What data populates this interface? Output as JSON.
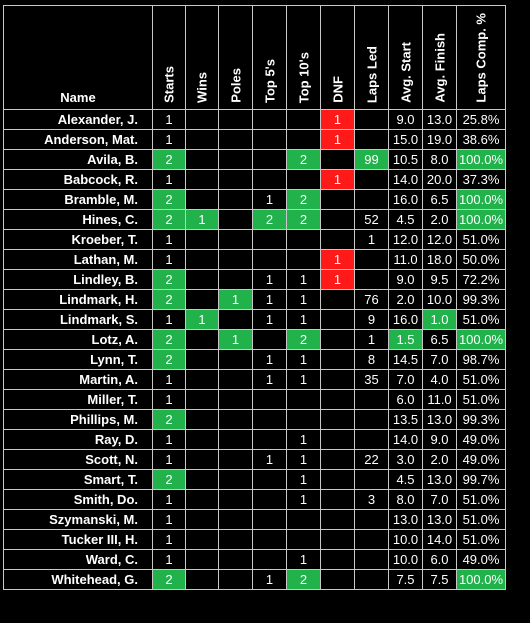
{
  "colors": {
    "green": "#22b24c",
    "red": "#ff1a1a",
    "bg": "#000000"
  },
  "headers": [
    "Name",
    "Starts",
    "Wins",
    "Poles",
    "Top 5's",
    "Top 10's",
    "DNF",
    "Laps Led",
    "Avg. Start",
    "Avg. Finish",
    "Laps Comp. %"
  ],
  "rows": [
    {
      "name": "Alexander, J.",
      "cells": [
        {
          "v": "1"
        },
        {
          "v": ""
        },
        {
          "v": ""
        },
        {
          "v": ""
        },
        {
          "v": ""
        },
        {
          "v": "1",
          "c": "r"
        },
        {
          "v": ""
        },
        {
          "v": "9.0"
        },
        {
          "v": "13.0"
        },
        {
          "v": "25.8%"
        }
      ]
    },
    {
      "name": "Anderson, Mat.",
      "cells": [
        {
          "v": "1"
        },
        {
          "v": ""
        },
        {
          "v": ""
        },
        {
          "v": ""
        },
        {
          "v": ""
        },
        {
          "v": "1",
          "c": "r"
        },
        {
          "v": ""
        },
        {
          "v": "15.0"
        },
        {
          "v": "19.0"
        },
        {
          "v": "38.6%"
        }
      ]
    },
    {
      "name": "Avila, B.",
      "cells": [
        {
          "v": "2",
          "c": "g"
        },
        {
          "v": ""
        },
        {
          "v": ""
        },
        {
          "v": ""
        },
        {
          "v": "2",
          "c": "g"
        },
        {
          "v": ""
        },
        {
          "v": "99",
          "c": "g"
        },
        {
          "v": "10.5"
        },
        {
          "v": "8.0"
        },
        {
          "v": "100.0%",
          "c": "g"
        }
      ]
    },
    {
      "name": "Babcock, R.",
      "cells": [
        {
          "v": "1"
        },
        {
          "v": ""
        },
        {
          "v": ""
        },
        {
          "v": ""
        },
        {
          "v": ""
        },
        {
          "v": "1",
          "c": "r"
        },
        {
          "v": ""
        },
        {
          "v": "14.0"
        },
        {
          "v": "20.0"
        },
        {
          "v": "37.3%"
        }
      ]
    },
    {
      "name": "Bramble, M.",
      "cells": [
        {
          "v": "2",
          "c": "g"
        },
        {
          "v": ""
        },
        {
          "v": ""
        },
        {
          "v": "1"
        },
        {
          "v": "2",
          "c": "g"
        },
        {
          "v": ""
        },
        {
          "v": ""
        },
        {
          "v": "16.0"
        },
        {
          "v": "6.5"
        },
        {
          "v": "100.0%",
          "c": "g"
        }
      ]
    },
    {
      "name": "Hines, C.",
      "cells": [
        {
          "v": "2",
          "c": "g"
        },
        {
          "v": "1",
          "c": "g"
        },
        {
          "v": ""
        },
        {
          "v": "2",
          "c": "g"
        },
        {
          "v": "2",
          "c": "g"
        },
        {
          "v": ""
        },
        {
          "v": "52"
        },
        {
          "v": "4.5"
        },
        {
          "v": "2.0"
        },
        {
          "v": "100.0%",
          "c": "g"
        }
      ]
    },
    {
      "name": "Kroeber, T.",
      "cells": [
        {
          "v": "1"
        },
        {
          "v": ""
        },
        {
          "v": ""
        },
        {
          "v": ""
        },
        {
          "v": ""
        },
        {
          "v": ""
        },
        {
          "v": "1"
        },
        {
          "v": "12.0"
        },
        {
          "v": "12.0"
        },
        {
          "v": "51.0%"
        }
      ]
    },
    {
      "name": "Lathan, M.",
      "cells": [
        {
          "v": "1"
        },
        {
          "v": ""
        },
        {
          "v": ""
        },
        {
          "v": ""
        },
        {
          "v": ""
        },
        {
          "v": "1",
          "c": "r"
        },
        {
          "v": ""
        },
        {
          "v": "11.0"
        },
        {
          "v": "18.0"
        },
        {
          "v": "50.0%"
        }
      ]
    },
    {
      "name": "Lindley, B.",
      "cells": [
        {
          "v": "2",
          "c": "g"
        },
        {
          "v": ""
        },
        {
          "v": ""
        },
        {
          "v": "1"
        },
        {
          "v": "1"
        },
        {
          "v": "1",
          "c": "r"
        },
        {
          "v": ""
        },
        {
          "v": "9.0"
        },
        {
          "v": "9.5"
        },
        {
          "v": "72.2%"
        }
      ]
    },
    {
      "name": "Lindmark, H.",
      "cells": [
        {
          "v": "2",
          "c": "g"
        },
        {
          "v": ""
        },
        {
          "v": "1",
          "c": "g"
        },
        {
          "v": "1"
        },
        {
          "v": "1"
        },
        {
          "v": ""
        },
        {
          "v": "76"
        },
        {
          "v": "2.0"
        },
        {
          "v": "10.0"
        },
        {
          "v": "99.3%"
        }
      ]
    },
    {
      "name": "Lindmark, S.",
      "cells": [
        {
          "v": "1"
        },
        {
          "v": "1",
          "c": "g"
        },
        {
          "v": ""
        },
        {
          "v": "1"
        },
        {
          "v": "1"
        },
        {
          "v": ""
        },
        {
          "v": "9"
        },
        {
          "v": "16.0"
        },
        {
          "v": "1.0",
          "c": "g"
        },
        {
          "v": "51.0%"
        }
      ]
    },
    {
      "name": "Lotz, A.",
      "cells": [
        {
          "v": "2",
          "c": "g"
        },
        {
          "v": ""
        },
        {
          "v": "1",
          "c": "g"
        },
        {
          "v": ""
        },
        {
          "v": "2",
          "c": "g"
        },
        {
          "v": ""
        },
        {
          "v": "1"
        },
        {
          "v": "1.5",
          "c": "g"
        },
        {
          "v": "6.5"
        },
        {
          "v": "100.0%",
          "c": "g"
        }
      ]
    },
    {
      "name": "Lynn, T.",
      "cells": [
        {
          "v": "2",
          "c": "g"
        },
        {
          "v": ""
        },
        {
          "v": ""
        },
        {
          "v": "1"
        },
        {
          "v": "1"
        },
        {
          "v": ""
        },
        {
          "v": "8"
        },
        {
          "v": "14.5"
        },
        {
          "v": "7.0"
        },
        {
          "v": "98.7%"
        }
      ]
    },
    {
      "name": "Martin, A.",
      "cells": [
        {
          "v": "1"
        },
        {
          "v": ""
        },
        {
          "v": ""
        },
        {
          "v": "1"
        },
        {
          "v": "1"
        },
        {
          "v": ""
        },
        {
          "v": "35"
        },
        {
          "v": "7.0"
        },
        {
          "v": "4.0"
        },
        {
          "v": "51.0%"
        }
      ]
    },
    {
      "name": "Miller, T.",
      "cells": [
        {
          "v": "1"
        },
        {
          "v": ""
        },
        {
          "v": ""
        },
        {
          "v": ""
        },
        {
          "v": ""
        },
        {
          "v": ""
        },
        {
          "v": ""
        },
        {
          "v": "6.0"
        },
        {
          "v": "11.0"
        },
        {
          "v": "51.0%"
        }
      ]
    },
    {
      "name": "Phillips, M.",
      "cells": [
        {
          "v": "2",
          "c": "g"
        },
        {
          "v": ""
        },
        {
          "v": ""
        },
        {
          "v": ""
        },
        {
          "v": ""
        },
        {
          "v": ""
        },
        {
          "v": ""
        },
        {
          "v": "13.5"
        },
        {
          "v": "13.0"
        },
        {
          "v": "99.3%"
        }
      ]
    },
    {
      "name": "Ray, D.",
      "cells": [
        {
          "v": "1"
        },
        {
          "v": ""
        },
        {
          "v": ""
        },
        {
          "v": ""
        },
        {
          "v": "1"
        },
        {
          "v": ""
        },
        {
          "v": ""
        },
        {
          "v": "14.0"
        },
        {
          "v": "9.0"
        },
        {
          "v": "49.0%"
        }
      ]
    },
    {
      "name": "Scott, N.",
      "cells": [
        {
          "v": "1"
        },
        {
          "v": ""
        },
        {
          "v": ""
        },
        {
          "v": "1"
        },
        {
          "v": "1"
        },
        {
          "v": ""
        },
        {
          "v": "22"
        },
        {
          "v": "3.0"
        },
        {
          "v": "2.0"
        },
        {
          "v": "49.0%"
        }
      ]
    },
    {
      "name": "Smart, T.",
      "cells": [
        {
          "v": "2",
          "c": "g"
        },
        {
          "v": ""
        },
        {
          "v": ""
        },
        {
          "v": ""
        },
        {
          "v": "1"
        },
        {
          "v": ""
        },
        {
          "v": ""
        },
        {
          "v": "4.5"
        },
        {
          "v": "13.0"
        },
        {
          "v": "99.7%"
        }
      ]
    },
    {
      "name": "Smith, Do.",
      "cells": [
        {
          "v": "1"
        },
        {
          "v": ""
        },
        {
          "v": ""
        },
        {
          "v": ""
        },
        {
          "v": "1"
        },
        {
          "v": ""
        },
        {
          "v": "3"
        },
        {
          "v": "8.0"
        },
        {
          "v": "7.0"
        },
        {
          "v": "51.0%"
        }
      ]
    },
    {
      "name": "Szymanski, M.",
      "cells": [
        {
          "v": "1"
        },
        {
          "v": ""
        },
        {
          "v": ""
        },
        {
          "v": ""
        },
        {
          "v": ""
        },
        {
          "v": ""
        },
        {
          "v": ""
        },
        {
          "v": "13.0"
        },
        {
          "v": "13.0"
        },
        {
          "v": "51.0%"
        }
      ]
    },
    {
      "name": "Tucker III, H.",
      "cells": [
        {
          "v": "1"
        },
        {
          "v": ""
        },
        {
          "v": ""
        },
        {
          "v": ""
        },
        {
          "v": ""
        },
        {
          "v": ""
        },
        {
          "v": ""
        },
        {
          "v": "10.0"
        },
        {
          "v": "14.0"
        },
        {
          "v": "51.0%"
        }
      ]
    },
    {
      "name": "Ward, C.",
      "cells": [
        {
          "v": "1"
        },
        {
          "v": ""
        },
        {
          "v": ""
        },
        {
          "v": ""
        },
        {
          "v": "1"
        },
        {
          "v": ""
        },
        {
          "v": ""
        },
        {
          "v": "10.0"
        },
        {
          "v": "6.0"
        },
        {
          "v": "49.0%"
        }
      ]
    },
    {
      "name": "Whitehead, G.",
      "cells": [
        {
          "v": "2",
          "c": "g"
        },
        {
          "v": ""
        },
        {
          "v": ""
        },
        {
          "v": "1"
        },
        {
          "v": "2",
          "c": "g"
        },
        {
          "v": ""
        },
        {
          "v": ""
        },
        {
          "v": "7.5"
        },
        {
          "v": "7.5"
        },
        {
          "v": "100.0%",
          "c": "g"
        }
      ]
    }
  ]
}
